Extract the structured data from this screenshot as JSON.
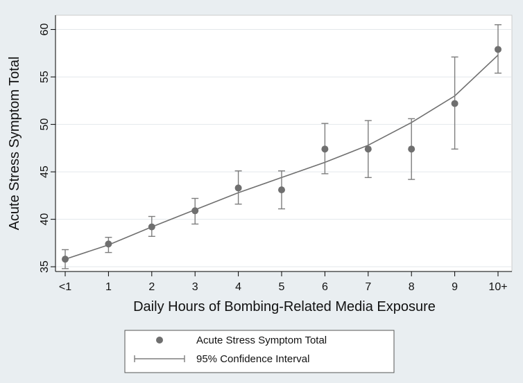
{
  "chart_data": {
    "type": "scatter",
    "xlabel": "Daily Hours of Bombing-Related Media Exposure",
    "ylabel": "Acute Stress Symptom Total",
    "categories": [
      "<1",
      "1",
      "2",
      "3",
      "4",
      "5",
      "6",
      "7",
      "8",
      "9",
      "10+"
    ],
    "ylim": [
      34.5,
      61.5
    ],
    "yticks": [
      35,
      40,
      45,
      50,
      55,
      60
    ],
    "grid": true,
    "legend_position": "bottom",
    "series": [
      {
        "name": "Acute Stress Symptom Total",
        "type": "points",
        "values": [
          35.8,
          37.4,
          39.2,
          40.9,
          43.3,
          43.1,
          47.4,
          47.4,
          47.4,
          52.2,
          57.9
        ]
      },
      {
        "name": "95% Confidence Interval",
        "type": "errorbars",
        "lower": [
          34.8,
          36.5,
          38.2,
          39.5,
          41.6,
          41.1,
          44.8,
          44.4,
          44.2,
          47.4,
          55.4
        ],
        "upper": [
          36.8,
          38.1,
          40.3,
          42.2,
          45.1,
          45.1,
          50.1,
          50.4,
          50.6,
          57.1,
          60.5
        ]
      },
      {
        "type": "fit-line",
        "values": [
          35.8,
          37.3,
          39.2,
          41.0,
          42.8,
          44.4,
          46.0,
          47.8,
          50.2,
          53.0,
          57.3
        ]
      }
    ],
    "colors": {
      "background": "#e9eef1",
      "plot_area": "#ffffff",
      "grid": "#e3e8eb",
      "marker": "#6f6f6f",
      "line": "#6f6f6f",
      "errorbar": "#7d7d7d"
    }
  }
}
